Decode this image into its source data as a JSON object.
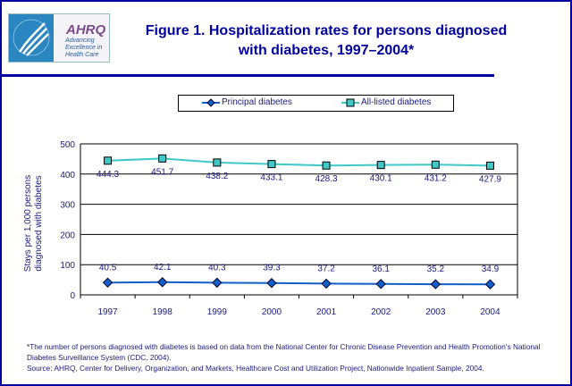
{
  "logo": {
    "text": "AHRQ",
    "tagline": [
      "Advancing",
      "Excellence in",
      "Health Care"
    ]
  },
  "title": [
    "Figure 1. Hospitalization rates for persons diagnosed",
    "with diabetes, 1997–2004*"
  ],
  "colors": {
    "frame": "#0000a0",
    "principal": "#1060c8",
    "all_listed": "#40c8c8",
    "text": "#1a1a80"
  },
  "chart_data": {
    "type": "line",
    "categories": [
      "1997",
      "1998",
      "1999",
      "2000",
      "2001",
      "2002",
      "2003",
      "2004"
    ],
    "series": [
      {
        "name": "Principal diabetes",
        "marker": "diamond",
        "values": [
          40.5,
          42.1,
          40.3,
          39.3,
          37.2,
          36.1,
          35.2,
          34.9
        ],
        "labels": [
          "40.5",
          "42.1",
          "40.3",
          "39.3",
          "37.2",
          "36.1",
          "35.2",
          "34.9"
        ]
      },
      {
        "name": "All-listed diabetes",
        "marker": "square",
        "values": [
          444.3,
          451.7,
          438.2,
          433.1,
          428.3,
          430.1,
          431.2,
          427.9
        ],
        "labels": [
          "444.3",
          "451.7",
          "438.2",
          "433.1",
          "428.3",
          "430.1",
          "431.2",
          "427.9"
        ]
      }
    ],
    "ylabel": [
      "Stays per 1,000 persons",
      "diagnosed with diabetes"
    ],
    "ylim": [
      0,
      500
    ],
    "yticks": [
      "0",
      "100",
      "200",
      "300",
      "400",
      "500"
    ],
    "grid": true,
    "legend": "top"
  },
  "footnotes": [
    "*The number of persons diagnosed with diabetes is based on data from the National Center for Chronic Disease Prevention and Health Promotion's National Diabetes Surveillance System (CDC, 2004).",
    "Source: AHRQ, Center for Delivery, Organization, and Markets, Healthcare Cost and Utilization Project, Nationwide Inpatient Sample, 2004."
  ]
}
